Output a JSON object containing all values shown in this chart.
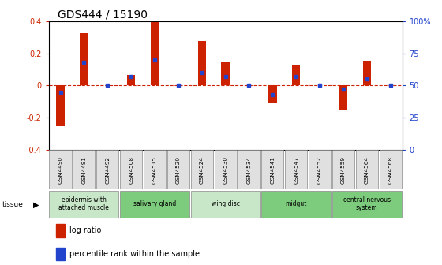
{
  "title": "GDS444 / 15190",
  "samples": [
    "GSM4490",
    "GSM4491",
    "GSM4492",
    "GSM4508",
    "GSM4515",
    "GSM4520",
    "GSM4524",
    "GSM4530",
    "GSM4534",
    "GSM4541",
    "GSM4547",
    "GSM4552",
    "GSM4559",
    "GSM4564",
    "GSM4568"
  ],
  "log_ratio": [
    -0.255,
    0.325,
    0.0,
    0.065,
    0.395,
    0.0,
    0.275,
    0.15,
    0.0,
    -0.105,
    0.125,
    0.0,
    -0.155,
    0.155,
    0.0
  ],
  "percentile": [
    45,
    68,
    50,
    57,
    70,
    50,
    60,
    57,
    50,
    43,
    57,
    50,
    47,
    55,
    50
  ],
  "ylim": [
    -0.4,
    0.4
  ],
  "yticks_left": [
    -0.4,
    -0.2,
    0.0,
    0.2,
    0.4
  ],
  "yticks_right": [
    0,
    25,
    50,
    75,
    100
  ],
  "tissue_groups": [
    {
      "label": "epidermis with\nattached muscle",
      "start": 0,
      "end": 3,
      "color": "#c8e6c8"
    },
    {
      "label": "salivary gland",
      "start": 3,
      "end": 6,
      "color": "#7dcc7d"
    },
    {
      "label": "wing disc",
      "start": 6,
      "end": 9,
      "color": "#c8e6c8"
    },
    {
      "label": "midgut",
      "start": 9,
      "end": 12,
      "color": "#7dcc7d"
    },
    {
      "label": "central nervous\nsystem",
      "start": 12,
      "end": 15,
      "color": "#7dcc7d"
    }
  ],
  "bar_color": "#cc2200",
  "percentile_color": "#2244cc",
  "bg_color": "#ffffff",
  "zero_line_color": "#cc2200",
  "title_fontsize": 10,
  "tick_fontsize": 7,
  "axis_label_color_left": "#cc2200",
  "axis_label_color_right": "#2244cc",
  "sample_box_color": "#e0e0e0",
  "bar_width": 0.35
}
